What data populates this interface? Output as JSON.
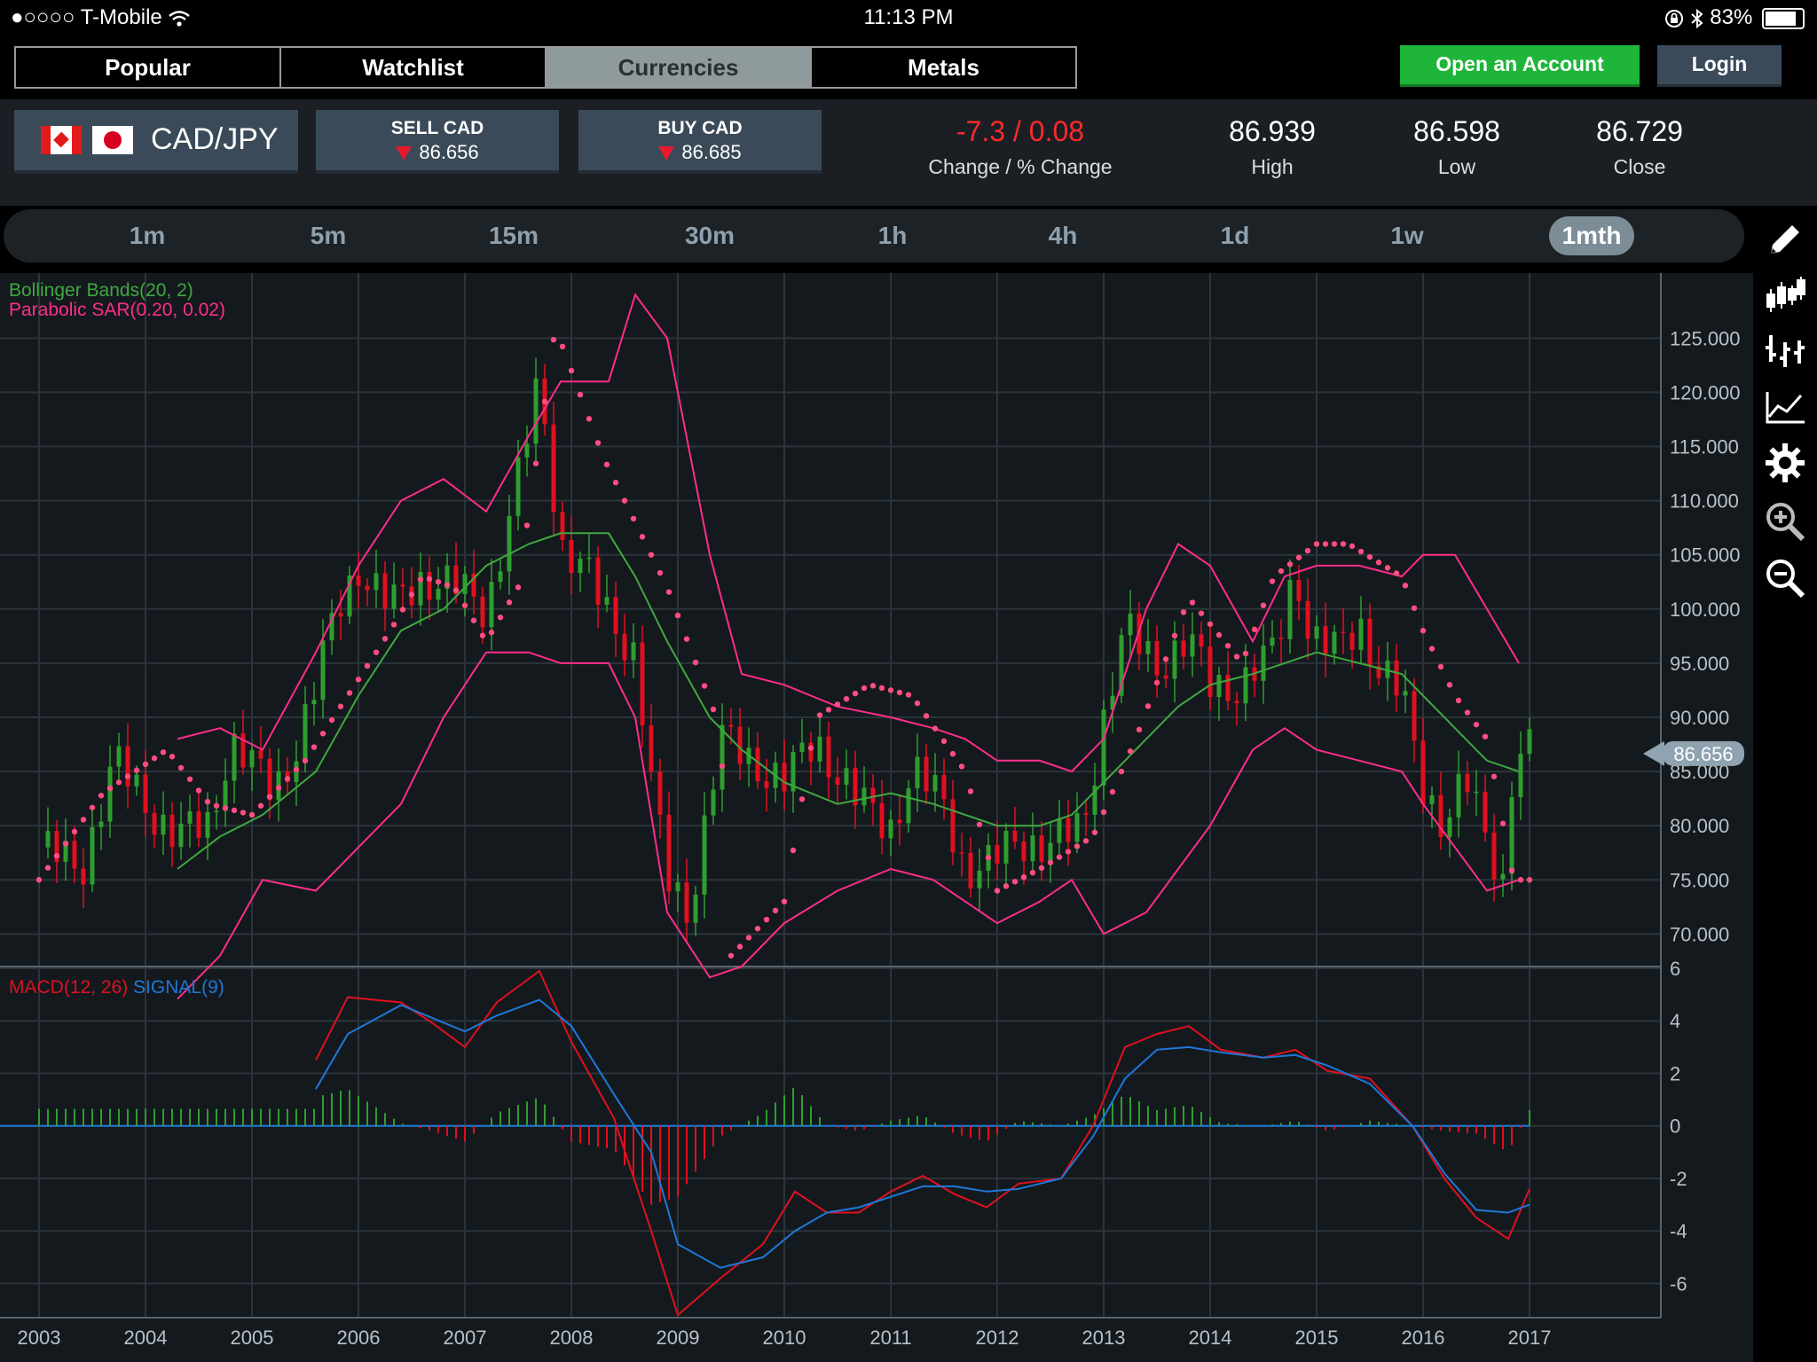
{
  "status_bar": {
    "carrier": "●○○○○ T-Mobile",
    "time": "11:13 PM",
    "battery": "83%"
  },
  "nav": {
    "tabs": [
      {
        "label": "Popular",
        "active": false
      },
      {
        "label": "Watchlist",
        "active": false
      },
      {
        "label": "Currencies",
        "active": true
      },
      {
        "label": "Metals",
        "active": false
      }
    ],
    "open_account": "Open an Account",
    "login": "Login"
  },
  "quote": {
    "pair": "CAD/JPY",
    "sell_label": "SELL CAD",
    "sell_price": "86.656",
    "buy_label": "BUY CAD",
    "buy_price": "86.685",
    "change_value": "-7.3 / 0.08",
    "change_label": "Change / % Change",
    "high_value": "86.939",
    "high_label": "High",
    "low_value": "86.598",
    "low_label": "Low",
    "close_value": "86.729",
    "close_label": "Close"
  },
  "timeframes": [
    "1m",
    "5m",
    "15m",
    "30m",
    "1h",
    "4h",
    "1d",
    "1w",
    "1mth"
  ],
  "active_timeframe": "1mth",
  "toolbar_icons": [
    "pencil-icon",
    "candlestick-icon",
    "bar-chart-icon",
    "line-chart-icon",
    "gear-icon",
    "zoom-in-icon",
    "zoom-out-icon"
  ],
  "colors": {
    "up": "#2e9e2e",
    "down": "#e0101e",
    "bollinger": "#ff2d8a",
    "middle": "#3fa83f",
    "sar": "#ff4d80",
    "macd": "#e0101e",
    "signal": "#1e78d8",
    "current": "#8fa3b1"
  },
  "chart_data": {
    "type": "candlestick",
    "current_price": "86.656",
    "indicators": {
      "bollinger_label": "Bollinger Bands(20, 2)",
      "sar_label": "Parabolic SAR(0.20, 0.02)",
      "macd_label": "MACD(12, 26)",
      "signal_label": "SIGNAL(9)"
    },
    "x_ticks": [
      "2003",
      "2004",
      "2005",
      "2006",
      "2007",
      "2008",
      "2009",
      "2010",
      "2011",
      "2012",
      "2013",
      "2014",
      "2015",
      "2016",
      "2017"
    ],
    "price_ticks": [
      "125.000",
      "120.000",
      "115.000",
      "110.000",
      "105.000",
      "100.000",
      "95.000",
      "90.000",
      "85.000",
      "80.000",
      "75.000",
      "70.000"
    ],
    "price_ylim": [
      67,
      131
    ],
    "macd_ticks": [
      "6",
      "4",
      "2",
      "0",
      "-2",
      "-4",
      "-6"
    ],
    "macd_ylim": [
      -7.3,
      6
    ],
    "price_close_keypoints": [
      [
        2003.0,
        78
      ],
      [
        2003.4,
        76
      ],
      [
        2003.7,
        86
      ],
      [
        2004.0,
        82
      ],
      [
        2004.3,
        79
      ],
      [
        2004.6,
        80
      ],
      [
        2004.8,
        88
      ],
      [
        2005.2,
        83
      ],
      [
        2005.4,
        87
      ],
      [
        2005.6,
        93
      ],
      [
        2005.8,
        100
      ],
      [
        2006.0,
        104
      ],
      [
        2006.3,
        100
      ],
      [
        2006.6,
        103
      ],
      [
        2006.9,
        102
      ],
      [
        2007.2,
        100
      ],
      [
        2007.5,
        112
      ],
      [
        2007.7,
        121
      ],
      [
        2007.9,
        106
      ],
      [
        2008.1,
        104
      ],
      [
        2008.3,
        100
      ],
      [
        2008.6,
        96
      ],
      [
        2008.75,
        84
      ],
      [
        2008.9,
        75
      ],
      [
        2009.1,
        72
      ],
      [
        2009.4,
        88
      ],
      [
        2009.7,
        86
      ],
      [
        2010.0,
        84
      ],
      [
        2010.3,
        88
      ],
      [
        2010.5,
        85
      ],
      [
        2010.7,
        82
      ],
      [
        2011.0,
        80
      ],
      [
        2011.2,
        85
      ],
      [
        2011.5,
        82
      ],
      [
        2011.7,
        76
      ],
      [
        2011.9,
        76
      ],
      [
        2012.2,
        79
      ],
      [
        2012.5,
        78
      ],
      [
        2012.8,
        80
      ],
      [
        2013.0,
        90
      ],
      [
        2013.2,
        98
      ],
      [
        2013.5,
        95
      ],
      [
        2013.8,
        97
      ],
      [
        2014.0,
        93
      ],
      [
        2014.3,
        93
      ],
      [
        2014.6,
        96
      ],
      [
        2014.8,
        104
      ],
      [
        2014.95,
        97
      ],
      [
        2015.2,
        96
      ],
      [
        2015.4,
        99
      ],
      [
        2015.6,
        94
      ],
      [
        2015.8,
        92
      ],
      [
        2016.0,
        84
      ],
      [
        2016.2,
        80
      ],
      [
        2016.4,
        84
      ],
      [
        2016.6,
        79
      ],
      [
        2016.75,
        75
      ],
      [
        2016.85,
        86
      ],
      [
        2017.0,
        86.7
      ]
    ],
    "bb_upper_keypoints": [
      [
        2004.3,
        88
      ],
      [
        2004.7,
        89
      ],
      [
        2005.1,
        87
      ],
      [
        2005.6,
        96
      ],
      [
        2006.0,
        104
      ],
      [
        2006.4,
        110
      ],
      [
        2006.8,
        112
      ],
      [
        2007.2,
        109
      ],
      [
        2007.6,
        116
      ],
      [
        2007.9,
        121
      ],
      [
        2008.35,
        121
      ],
      [
        2008.6,
        129
      ],
      [
        2008.9,
        125
      ],
      [
        2009.3,
        105
      ],
      [
        2009.6,
        94
      ],
      [
        2010.0,
        93
      ],
      [
        2010.5,
        91
      ],
      [
        2011.0,
        90
      ],
      [
        2011.4,
        89
      ],
      [
        2011.7,
        88
      ],
      [
        2012.0,
        86
      ],
      [
        2012.4,
        86
      ],
      [
        2012.7,
        85
      ],
      [
        2013.0,
        88
      ],
      [
        2013.4,
        100
      ],
      [
        2013.7,
        106
      ],
      [
        2014.0,
        104
      ],
      [
        2014.4,
        97
      ],
      [
        2014.7,
        103
      ],
      [
        2015.0,
        104
      ],
      [
        2015.4,
        104
      ],
      [
        2015.8,
        103
      ],
      [
        2016.0,
        105
      ],
      [
        2016.3,
        105
      ],
      [
        2016.6,
        100
      ],
      [
        2016.9,
        95
      ]
    ],
    "bb_middle_keypoints": [
      [
        2004.3,
        76
      ],
      [
        2004.7,
        79
      ],
      [
        2005.1,
        81
      ],
      [
        2005.6,
        85
      ],
      [
        2006.0,
        92
      ],
      [
        2006.4,
        98
      ],
      [
        2006.8,
        100
      ],
      [
        2007.2,
        104
      ],
      [
        2007.6,
        106
      ],
      [
        2007.9,
        107
      ],
      [
        2008.35,
        107
      ],
      [
        2008.6,
        103
      ],
      [
        2008.9,
        97
      ],
      [
        2009.3,
        90
      ],
      [
        2009.6,
        87
      ],
      [
        2010.0,
        84
      ],
      [
        2010.5,
        82
      ],
      [
        2011.0,
        83
      ],
      [
        2011.4,
        82
      ],
      [
        2011.7,
        81
      ],
      [
        2012.0,
        80
      ],
      [
        2012.4,
        80
      ],
      [
        2012.7,
        81
      ],
      [
        2013.0,
        84
      ],
      [
        2013.4,
        88
      ],
      [
        2013.7,
        91
      ],
      [
        2014.0,
        93
      ],
      [
        2014.4,
        94
      ],
      [
        2014.7,
        95
      ],
      [
        2015.0,
        96
      ],
      [
        2015.4,
        95
      ],
      [
        2015.8,
        94
      ],
      [
        2016.0,
        92
      ],
      [
        2016.3,
        89
      ],
      [
        2016.6,
        86
      ],
      [
        2016.9,
        85
      ]
    ],
    "bb_lower_keypoints": [
      [
        2004.3,
        64
      ],
      [
        2004.7,
        68
      ],
      [
        2005.1,
        75
      ],
      [
        2005.6,
        74
      ],
      [
        2006.0,
        78
      ],
      [
        2006.4,
        82
      ],
      [
        2006.8,
        90
      ],
      [
        2007.2,
        96
      ],
      [
        2007.6,
        96
      ],
      [
        2007.9,
        95
      ],
      [
        2008.35,
        95
      ],
      [
        2008.6,
        90
      ],
      [
        2008.9,
        72
      ],
      [
        2009.3,
        66
      ],
      [
        2009.6,
        67
      ],
      [
        2010.0,
        71
      ],
      [
        2010.5,
        74
      ],
      [
        2011.0,
        76
      ],
      [
        2011.4,
        75
      ],
      [
        2011.7,
        73
      ],
      [
        2012.0,
        71
      ],
      [
        2012.4,
        73
      ],
      [
        2012.7,
        75
      ],
      [
        2013.0,
        70
      ],
      [
        2013.4,
        72
      ],
      [
        2013.7,
        76
      ],
      [
        2014.0,
        80
      ],
      [
        2014.4,
        87
      ],
      [
        2014.7,
        89
      ],
      [
        2015.0,
        87
      ],
      [
        2015.4,
        86
      ],
      [
        2015.8,
        85
      ],
      [
        2016.0,
        82
      ],
      [
        2016.3,
        78
      ],
      [
        2016.6,
        74
      ],
      [
        2016.9,
        75
      ]
    ],
    "sar_keypoints": [
      [
        2003.0,
        75
      ],
      [
        2003.6,
        83
      ],
      [
        2004.2,
        87
      ],
      [
        2004.6,
        82
      ],
      [
        2005.0,
        81
      ],
      [
        2005.5,
        86
      ],
      [
        2005.9,
        92
      ],
      [
        2006.3,
        98
      ],
      [
        2006.6,
        103
      ],
      [
        2006.9,
        102
      ],
      [
        2007.2,
        97
      ],
      [
        2007.5,
        102
      ],
      [
        2007.85,
        126
      ],
      [
        2008.3,
        114
      ],
      [
        2008.5,
        110
      ],
      [
        2008.9,
        102
      ],
      [
        2009.4,
        89
      ],
      [
        2009.5,
        68
      ],
      [
        2010.0,
        73
      ],
      [
        2010.3,
        90
      ],
      [
        2010.8,
        93
      ],
      [
        2011.2,
        92
      ],
      [
        2011.7,
        85
      ],
      [
        2012.0,
        74
      ],
      [
        2012.4,
        76
      ],
      [
        2012.9,
        79
      ],
      [
        2013.3,
        88
      ],
      [
        2013.8,
        101
      ],
      [
        2014.3,
        95
      ],
      [
        2014.6,
        103
      ],
      [
        2015.0,
        106
      ],
      [
        2015.3,
        106
      ],
      [
        2015.8,
        103
      ],
      [
        2016.0,
        98
      ],
      [
        2016.3,
        92
      ],
      [
        2016.6,
        88
      ],
      [
        2016.85,
        75
      ],
      [
        2017.0,
        75
      ]
    ],
    "macd_keypoints": [
      [
        2005.6,
        2.5
      ],
      [
        2005.9,
        4.9
      ],
      [
        2006.4,
        4.7
      ],
      [
        2006.7,
        3.9
      ],
      [
        2007.0,
        3.0
      ],
      [
        2007.3,
        4.7
      ],
      [
        2007.7,
        5.9
      ],
      [
        2008.0,
        3.2
      ],
      [
        2008.4,
        0.3
      ],
      [
        2008.75,
        -4.0
      ],
      [
        2009.0,
        -7.2
      ],
      [
        2009.4,
        -5.8
      ],
      [
        2009.8,
        -4.5
      ],
      [
        2010.1,
        -2.5
      ],
      [
        2010.4,
        -3.3
      ],
      [
        2010.7,
        -3.3
      ],
      [
        2011.0,
        -2.5
      ],
      [
        2011.3,
        -1.9
      ],
      [
        2011.6,
        -2.6
      ],
      [
        2011.9,
        -3.1
      ],
      [
        2012.2,
        -2.2
      ],
      [
        2012.6,
        -2.0
      ],
      [
        2012.9,
        0.0
      ],
      [
        2013.2,
        3.0
      ],
      [
        2013.5,
        3.5
      ],
      [
        2013.8,
        3.8
      ],
      [
        2014.1,
        2.9
      ],
      [
        2014.5,
        2.6
      ],
      [
        2014.8,
        2.9
      ],
      [
        2015.1,
        2.1
      ],
      [
        2015.5,
        1.8
      ],
      [
        2015.9,
        0.0
      ],
      [
        2016.2,
        -2.0
      ],
      [
        2016.5,
        -3.5
      ],
      [
        2016.8,
        -4.3
      ],
      [
        2017.0,
        -2.4
      ]
    ],
    "signal_keypoints": [
      [
        2005.6,
        1.4
      ],
      [
        2005.9,
        3.5
      ],
      [
        2006.4,
        4.6
      ],
      [
        2006.7,
        4.1
      ],
      [
        2007.0,
        3.6
      ],
      [
        2007.3,
        4.2
      ],
      [
        2007.7,
        4.8
      ],
      [
        2008.0,
        3.8
      ],
      [
        2008.4,
        1.2
      ],
      [
        2008.75,
        -1.0
      ],
      [
        2009.0,
        -4.5
      ],
      [
        2009.4,
        -5.4
      ],
      [
        2009.8,
        -5.0
      ],
      [
        2010.1,
        -4.0
      ],
      [
        2010.4,
        -3.3
      ],
      [
        2010.7,
        -3.1
      ],
      [
        2011.0,
        -2.7
      ],
      [
        2011.3,
        -2.3
      ],
      [
        2011.6,
        -2.3
      ],
      [
        2011.9,
        -2.5
      ],
      [
        2012.2,
        -2.4
      ],
      [
        2012.6,
        -2.0
      ],
      [
        2012.9,
        -0.4
      ],
      [
        2013.2,
        1.8
      ],
      [
        2013.5,
        2.9
      ],
      [
        2013.8,
        3.0
      ],
      [
        2014.1,
        2.8
      ],
      [
        2014.5,
        2.6
      ],
      [
        2014.8,
        2.7
      ],
      [
        2015.1,
        2.3
      ],
      [
        2015.5,
        1.6
      ],
      [
        2015.9,
        0.0
      ],
      [
        2016.2,
        -1.8
      ],
      [
        2016.5,
        -3.2
      ],
      [
        2016.8,
        -3.3
      ],
      [
        2017.0,
        -3.0
      ]
    ]
  }
}
